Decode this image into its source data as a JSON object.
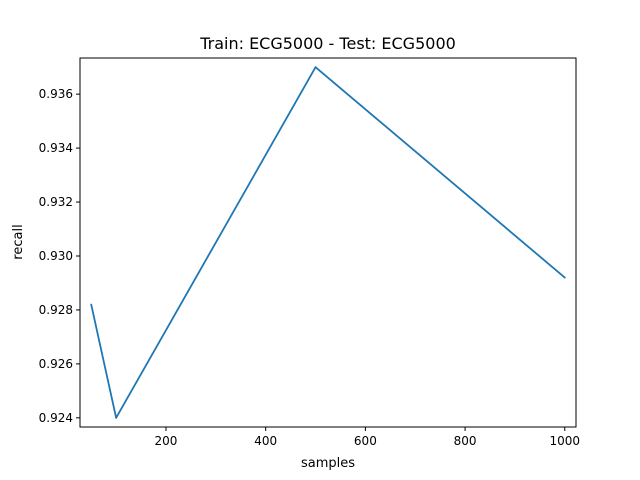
{
  "chart_data": {
    "type": "line",
    "title": "Train: ECG5000 - Test: ECG5000",
    "xlabel": "samples",
    "ylabel": "recall",
    "xlim": [
      27.5,
      1022.5
    ],
    "ylim": [
      0.92366,
      0.93734
    ],
    "xticks": [
      200,
      400,
      600,
      800,
      1000
    ],
    "yticks": [
      0.924,
      0.926,
      0.928,
      0.93,
      0.932,
      0.934,
      0.936
    ],
    "ytick_labels": [
      "0.924",
      "0.926",
      "0.928",
      "0.930",
      "0.932",
      "0.934",
      "0.936"
    ],
    "grid": false,
    "series": [
      {
        "x": [
          50,
          100,
          500,
          1000
        ],
        "values": [
          0.9282,
          0.924,
          0.937,
          0.9292
        ],
        "color": "#1f77b4"
      }
    ]
  }
}
